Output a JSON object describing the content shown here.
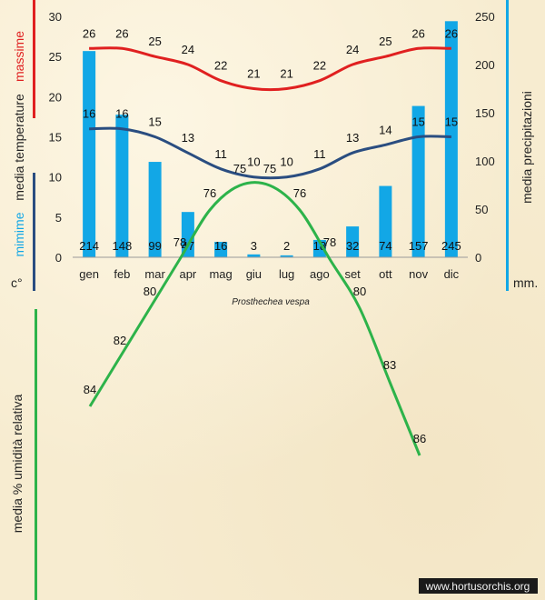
{
  "species_name": "Prosthechea vespa",
  "watermark": "www.hortusorchis.org",
  "colors": {
    "max_temp": "#e02020",
    "min_temp": "#2a4d80",
    "precip": "#12a7e6",
    "humidity": "#2db34a",
    "max_bar": "#e02020",
    "min_bar_top": "#2a4d80",
    "min_bar_bottom": "#12a7e6",
    "precip_bar": "#12a7e6"
  },
  "chart_data": [
    {
      "type": "bar",
      "categories": [
        "gen",
        "feb",
        "mar",
        "apr",
        "mag",
        "giu",
        "lug",
        "ago",
        "set",
        "ott",
        "nov",
        "dic"
      ],
      "series": [
        {
          "name": "precipitazioni",
          "axis": "right",
          "values": [
            214,
            148,
            99,
            47,
            16,
            3,
            2,
            18,
            32,
            74,
            157,
            245
          ]
        },
        {
          "name": "massime",
          "type": "line",
          "axis": "left",
          "values": [
            26,
            26,
            25,
            24,
            22,
            21,
            21,
            22,
            24,
            25,
            26,
            26
          ]
        },
        {
          "name": "minime",
          "type": "line",
          "axis": "left",
          "values": [
            16,
            16,
            15,
            13,
            11,
            10,
            10,
            11,
            13,
            14,
            15,
            15
          ]
        }
      ],
      "left_axis": {
        "ylim": [
          0,
          30
        ],
        "ticks": [
          "0",
          "5",
          "10",
          "15",
          "20",
          "25",
          "30"
        ],
        "label_massime": "massime",
        "label_media": "media temperature",
        "label_minime": "mimime",
        "unit": "c°"
      },
      "right_axis": {
        "ylim": [
          0,
          250
        ],
        "ticks": [
          "0",
          "50",
          "100",
          "150",
          "200",
          "250"
        ],
        "label": "media precipitazioni",
        "unit": "mm."
      },
      "grid": false,
      "legend": "none"
    },
    {
      "type": "line",
      "categories": [
        "gen",
        "feb",
        "mar",
        "apr",
        "mag",
        "giu",
        "lug",
        "ago",
        "set",
        "ott",
        "nov",
        "dic"
      ],
      "series": [
        {
          "name": "umidità relativa",
          "values": [
            84,
            82,
            80,
            78,
            76,
            75,
            75,
            76,
            78,
            80,
            83,
            86
          ]
        }
      ],
      "ylabel": "media % umidità relativa",
      "grid": false,
      "legend": "none"
    }
  ]
}
